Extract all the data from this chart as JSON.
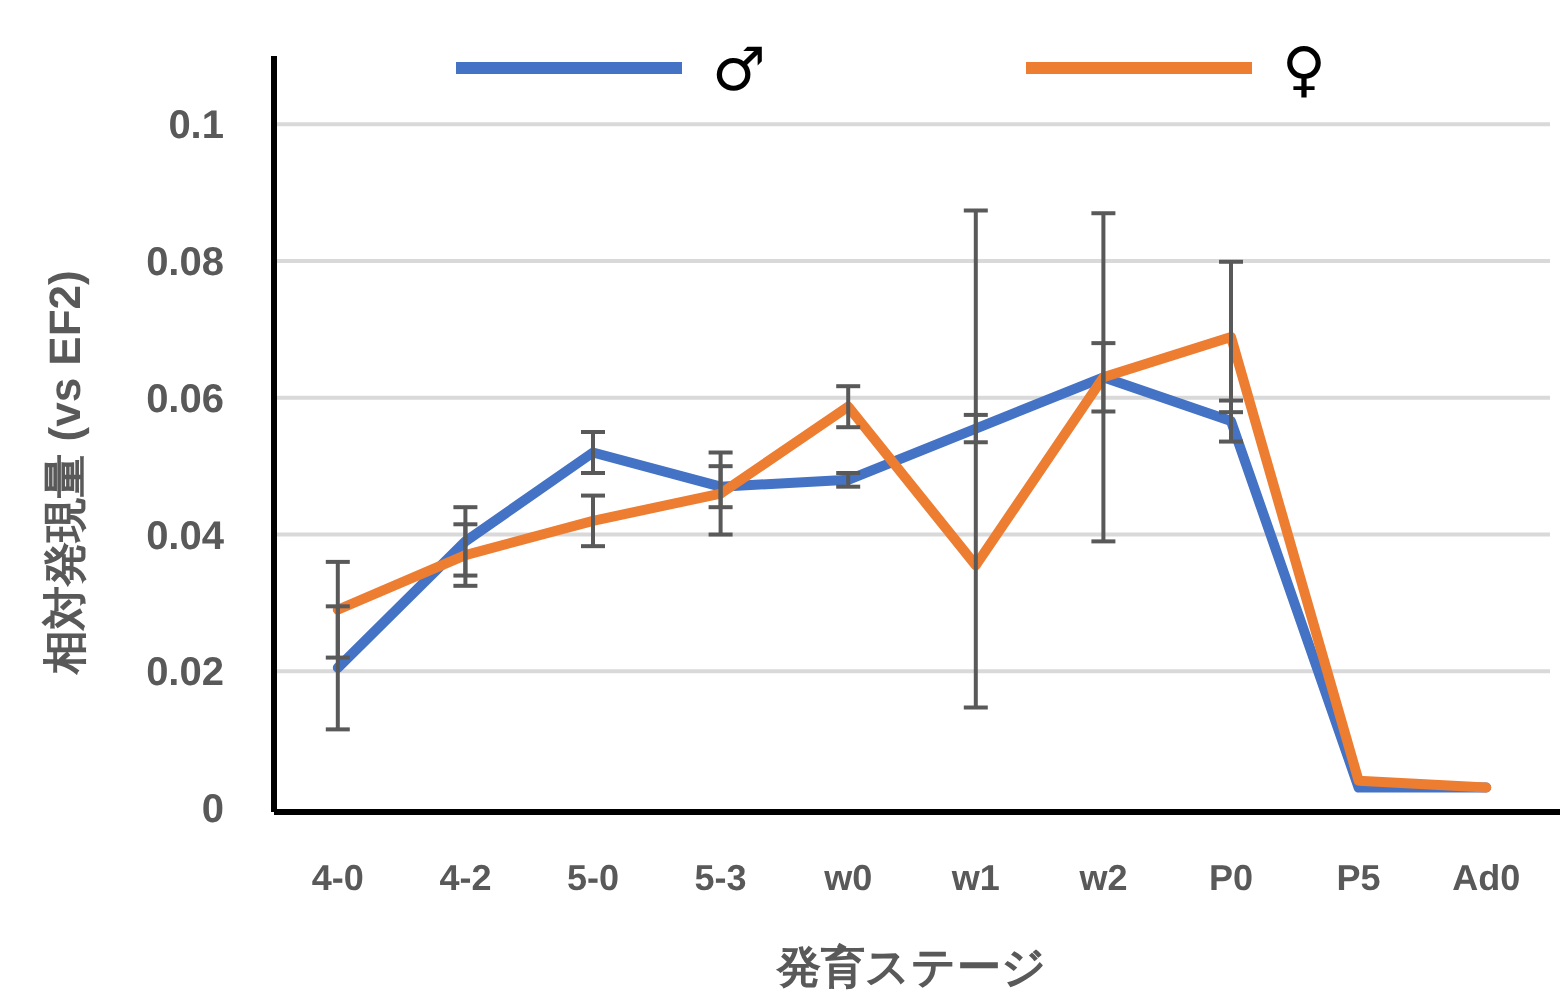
{
  "chart_data": {
    "type": "line",
    "xlabel": "発育ステージ",
    "ylabel": "相対発現量 (vs EF2)",
    "categories": [
      "4-0",
      "4-2",
      "5-0",
      "5-3",
      "w0",
      "w1",
      "w2",
      "P0",
      "P5",
      "Ad0"
    ],
    "series": [
      {
        "name": "♂",
        "color": "#4472c4",
        "values": [
          0.0205,
          0.039,
          0.052,
          0.047,
          0.048,
          0.0555,
          0.063,
          0.0566,
          0.003,
          0.003
        ],
        "errors": [
          0.009,
          0.005,
          0.003,
          0.003,
          0.001,
          0.002,
          0.005,
          0.003,
          null,
          null
        ]
      },
      {
        "name": "♀",
        "color": "#ed7d31",
        "values": [
          0.029,
          0.037,
          0.042,
          0.046,
          0.0587,
          0.0355,
          0.063,
          0.0689,
          0.004,
          0.003
        ],
        "errors": [
          0.007,
          0.0045,
          0.0037,
          0.006,
          0.003,
          [
            0.0147,
            0.0874
          ],
          0.024,
          0.011,
          null,
          null
        ]
      }
    ],
    "ylim": [
      0,
      0.11
    ],
    "yticks": [
      0,
      0.02,
      0.04,
      0.06,
      0.08,
      0.1
    ],
    "grid": "y",
    "legend": "top",
    "marker": "none",
    "line_style": "solid"
  }
}
